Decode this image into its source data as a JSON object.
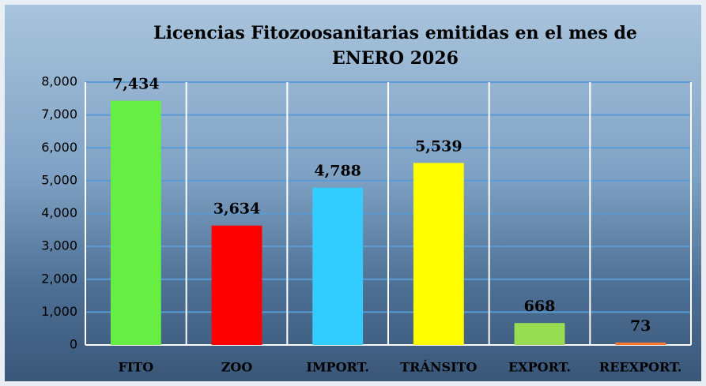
{
  "chart_data": {
    "type": "bar",
    "title": "Licencias Fitozoosanitarias emitidas en el mes de ENERO 2026",
    "categories": [
      "FITO",
      "ZOO",
      "IMPORT.",
      "TRÁNSITO",
      "EXPORT.",
      "REEXPORT."
    ],
    "values": [
      7434,
      3634,
      4788,
      5539,
      668,
      73
    ],
    "value_labels": [
      "7,434",
      "3,634",
      "4,788",
      "5,539",
      "668",
      "73"
    ],
    "colors": [
      "#66ee44",
      "#ff0000",
      "#33ccff",
      "#ffff00",
      "#99dd55",
      "#ff7733"
    ],
    "ylim": [
      0,
      8000
    ],
    "yticks": [
      0,
      {
        "value": 1000,
        "label": "1,000"
      },
      {
        "value": 2000,
        "label": "2,000"
      },
      {
        "value": 3000,
        "label": "3,000"
      },
      {
        "value": 4000,
        "label": "4,000"
      },
      {
        "value": 5000,
        "label": "5,000"
      },
      {
        "value": 6000,
        "label": "6,000"
      },
      {
        "value": 7000,
        "label": "7,000"
      },
      {
        "value": 8000,
        "label": "8,000"
      }
    ],
    "grid": true
  }
}
